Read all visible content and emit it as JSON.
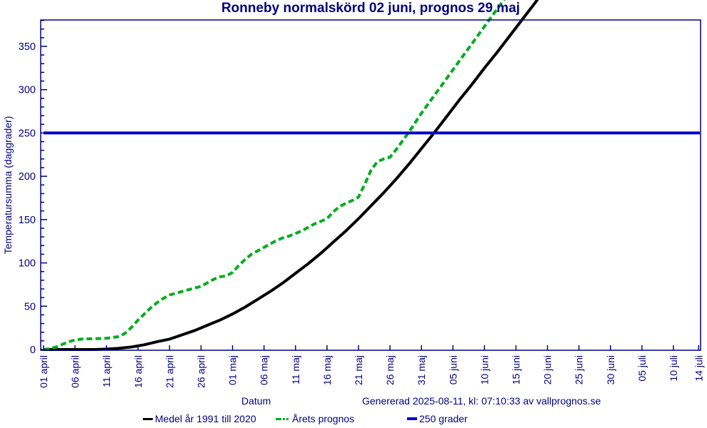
{
  "title": "Ronneby normalskörd 02 juni, prognos 29 maj",
  "footer": {
    "datum_label": "Datum",
    "generated": "Genererad 2025-08-11, kl: 07:10:33 av vallprognos.se"
  },
  "colors": {
    "axis": "#000080",
    "text": "#000080",
    "mean_line": "#000000",
    "forecast_line": "#00ad1e",
    "threshold_line": "#0000cc",
    "background": "#ffffff"
  },
  "chart_data": {
    "type": "line",
    "title": "Ronneby normalskörd 02 juni, prognos 29 maj",
    "xlabel": "Datum",
    "ylabel": "Temperatursumma (daggrader)",
    "ylim": [
      0,
      385
    ],
    "grid": false,
    "legend_position": "bottom",
    "y_major_ticks": [
      0,
      50,
      100,
      150,
      200,
      250,
      300,
      350
    ],
    "y_minor_step": 10,
    "y_minor_max": 380,
    "x_tick_labels": [
      "01 april",
      "06 april",
      "11 april",
      "16 april",
      "21 april",
      "26 april",
      "01 maj",
      "06 maj",
      "11 maj",
      "16 maj",
      "21 maj",
      "26 maj",
      "31 maj",
      "05 juni",
      "10 juni",
      "15 juni",
      "20 juni",
      "25 juni",
      "30 juni",
      "05 juli",
      "10 juli",
      "14 juli"
    ],
    "x_tick_days": [
      0,
      5,
      10,
      15,
      20,
      25,
      30,
      35,
      40,
      45,
      50,
      55,
      60,
      65,
      70,
      75,
      80,
      85,
      90,
      95,
      100,
      104
    ],
    "x_range_days": [
      0,
      104
    ],
    "x_unit": "days since 01 april",
    "series": [
      {
        "name": "Medel år 1991 till 2020",
        "color": "#000000",
        "style": "solid",
        "points": [
          [
            0,
            0
          ],
          [
            4,
            0
          ],
          [
            8,
            0
          ],
          [
            10,
            0.5
          ],
          [
            12,
            1.5
          ],
          [
            14,
            3
          ],
          [
            16,
            5.5
          ],
          [
            18,
            9
          ],
          [
            20,
            12
          ],
          [
            22,
            17
          ],
          [
            24,
            22
          ],
          [
            26,
            28
          ],
          [
            28,
            34
          ],
          [
            30,
            41
          ],
          [
            32,
            49
          ],
          [
            34,
            58
          ],
          [
            36,
            67
          ],
          [
            38,
            77
          ],
          [
            40,
            88
          ],
          [
            42,
            99
          ],
          [
            44,
            111
          ],
          [
            46,
            124
          ],
          [
            48,
            137
          ],
          [
            50,
            151
          ],
          [
            52,
            166
          ],
          [
            54,
            181
          ],
          [
            56,
            197
          ],
          [
            58,
            214
          ],
          [
            60,
            232
          ],
          [
            62,
            250
          ],
          [
            64,
            269
          ],
          [
            66,
            288
          ],
          [
            68,
            306
          ],
          [
            70,
            325
          ],
          [
            72,
            343
          ],
          [
            74,
            362
          ],
          [
            76,
            381
          ],
          [
            78,
            400
          ],
          [
            78.8,
            408
          ]
        ]
      },
      {
        "name": "Årets prognos",
        "color": "#00ad1e",
        "style": "dashed",
        "points": [
          [
            0,
            0
          ],
          [
            1,
            1
          ],
          [
            2,
            3
          ],
          [
            3,
            6
          ],
          [
            4,
            9
          ],
          [
            5,
            11
          ],
          [
            6,
            12
          ],
          [
            8,
            12.5
          ],
          [
            10,
            13
          ],
          [
            12,
            15
          ],
          [
            13,
            19
          ],
          [
            14,
            26
          ],
          [
            15,
            34
          ],
          [
            16,
            41
          ],
          [
            17,
            48
          ],
          [
            18,
            54
          ],
          [
            19,
            59
          ],
          [
            20,
            63
          ],
          [
            21,
            65
          ],
          [
            22,
            67
          ],
          [
            23,
            69
          ],
          [
            24,
            71
          ],
          [
            25,
            73
          ],
          [
            26,
            77
          ],
          [
            27,
            81
          ],
          [
            28,
            84
          ],
          [
            29,
            85
          ],
          [
            30,
            89
          ],
          [
            31,
            97
          ],
          [
            32,
            104
          ],
          [
            33,
            110
          ],
          [
            34,
            114
          ],
          [
            35,
            118
          ],
          [
            36,
            122
          ],
          [
            37,
            126
          ],
          [
            38,
            129
          ],
          [
            39,
            131
          ],
          [
            40,
            134
          ],
          [
            41,
            137
          ],
          [
            42,
            141
          ],
          [
            43,
            145
          ],
          [
            44,
            148
          ],
          [
            45,
            151
          ],
          [
            46,
            159
          ],
          [
            47,
            165
          ],
          [
            48,
            169
          ],
          [
            49,
            172
          ],
          [
            50,
            176
          ],
          [
            51,
            191
          ],
          [
            52,
            207
          ],
          [
            53,
            217
          ],
          [
            54,
            220
          ],
          [
            55,
            222
          ],
          [
            56,
            231
          ],
          [
            57,
            241
          ],
          [
            58,
            251
          ],
          [
            59,
            262
          ],
          [
            60,
            273
          ],
          [
            61,
            283
          ],
          [
            62,
            293
          ],
          [
            63,
            303
          ],
          [
            64,
            313
          ],
          [
            65,
            323
          ],
          [
            66,
            333
          ],
          [
            67,
            343
          ],
          [
            68,
            353
          ],
          [
            69,
            363
          ],
          [
            70,
            373
          ],
          [
            71,
            383
          ],
          [
            72,
            393
          ],
          [
            73,
            403
          ],
          [
            73.5,
            408
          ]
        ]
      },
      {
        "name": "250 grader",
        "color": "#0000cc",
        "style": "solid",
        "points": [
          [
            0,
            250
          ],
          [
            104.2,
            250
          ]
        ]
      }
    ],
    "annotations": {
      "mean_reaches_250": "02 juni",
      "forecast_reaches_250": "29 maj"
    }
  }
}
